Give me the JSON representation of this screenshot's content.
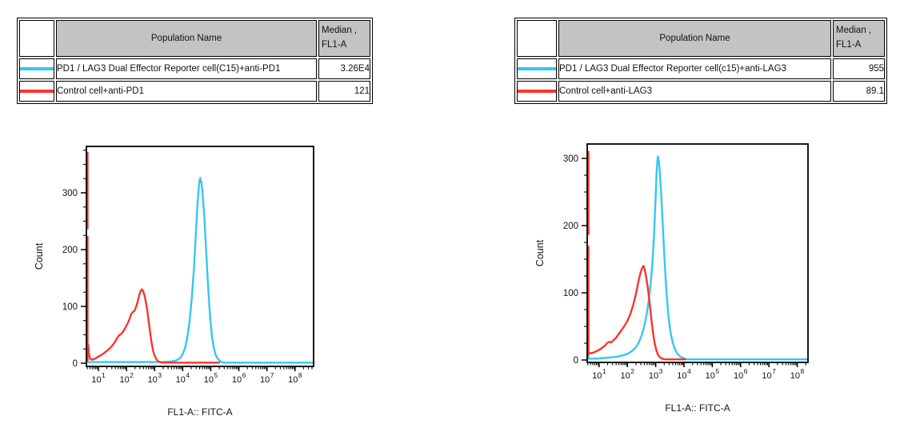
{
  "colors": {
    "series_cyan": "#35C6F4",
    "series_red": "#F8362E",
    "table_header_bg": "#C3C3C3",
    "axis": "#000000"
  },
  "panels": [
    {
      "table": {
        "population_header": "Population Name",
        "median_header_line1": "Median ,",
        "median_header_line2": "FL1-A",
        "rows": [
          {
            "swatch_color": "#35C6F4",
            "name": "PD1 / LAG3 Dual Effector Reporter cell(C15)+anti-PD1",
            "median": "3.26E4"
          },
          {
            "swatch_color": "#F8362E",
            "name": "Control cell+anti-PD1",
            "median": "121"
          }
        ]
      }
    },
    {
      "table": {
        "population_header": "Population Name",
        "median_header_line1": "Median ,",
        "median_header_line2": "FL1-A",
        "rows": [
          {
            "swatch_color": "#35C6F4",
            "name": "PD1 / LAG3 Dual Effector Reporter cell(c15)+anti-LAG3",
            "median": "955"
          },
          {
            "swatch_color": "#F8362E",
            "name": "Control cell+anti-LAG3",
            "median": "89.1"
          }
        ]
      }
    }
  ],
  "chart_data": [
    {
      "type": "line",
      "subtype": "flow-histogram",
      "xlabel": "FL1-A:: FITC-A",
      "ylabel": "Count",
      "xscale": "log10",
      "xlog_min": 0.57,
      "xlog_max": 8.66,
      "x_major_ticks_exponents": [
        1,
        2,
        3,
        4,
        5,
        6,
        7,
        8
      ],
      "y_major_ticks": [
        0,
        100,
        200,
        300
      ],
      "y_minor_step": 25,
      "y_max": 378,
      "grid": false,
      "legend": "none",
      "series": [
        {
          "name": "PD1 / LAG3 Dual Effector Reporter cell(C15)+anti-PD1",
          "color": "#35C6F4",
          "peak_x_log10": 4.62,
          "peak_count": 326,
          "edge_spike_segments": [],
          "points_logx_count": [
            [
              0.585,
              2
            ],
            [
              1.2,
              2
            ],
            [
              2.0,
              2
            ],
            [
              2.8,
              2
            ],
            [
              3.3,
              2
            ],
            [
              3.55,
              3
            ],
            [
              3.7,
              4
            ],
            [
              3.82,
              6
            ],
            [
              3.92,
              10
            ],
            [
              4.0,
              16
            ],
            [
              4.08,
              26
            ],
            [
              4.16,
              44
            ],
            [
              4.24,
              72
            ],
            [
              4.32,
              112
            ],
            [
              4.4,
              168
            ],
            [
              4.47,
              230
            ],
            [
              4.53,
              283
            ],
            [
              4.58,
              315
            ],
            [
              4.62,
              326
            ],
            [
              4.66,
              320
            ],
            [
              4.71,
              298
            ],
            [
              4.77,
              258
            ],
            [
              4.83,
              202
            ],
            [
              4.9,
              138
            ],
            [
              4.97,
              84
            ],
            [
              5.04,
              48
            ],
            [
              5.11,
              26
            ],
            [
              5.18,
              14
            ],
            [
              5.26,
              7
            ],
            [
              5.35,
              3
            ],
            [
              5.45,
              1
            ],
            [
              6.2,
              1
            ],
            [
              7.4,
              1
            ],
            [
              8.64,
              1
            ]
          ]
        },
        {
          "name": "Control cell+anti-PD1",
          "color": "#F8362E",
          "peak_x_log10": 2.55,
          "peak_count": 130,
          "edge_spike_segments": [
            [
              4,
              224
            ],
            [
              236,
              372
            ]
          ],
          "points_logx_count": [
            [
              0.585,
              4
            ],
            [
              0.61,
              30
            ],
            [
              0.635,
              32
            ],
            [
              0.66,
              16
            ],
            [
              0.7,
              8
            ],
            [
              0.78,
              6
            ],
            [
              0.88,
              8
            ],
            [
              0.98,
              11
            ],
            [
              1.08,
              14
            ],
            [
              1.18,
              17
            ],
            [
              1.28,
              21
            ],
            [
              1.38,
              25
            ],
            [
              1.48,
              30
            ],
            [
              1.58,
              37
            ],
            [
              1.66,
              44
            ],
            [
              1.73,
              49
            ],
            [
              1.8,
              51
            ],
            [
              1.87,
              55
            ],
            [
              1.94,
              61
            ],
            [
              2.02,
              68
            ],
            [
              2.1,
              77
            ],
            [
              2.16,
              86
            ],
            [
              2.22,
              90
            ],
            [
              2.28,
              92
            ],
            [
              2.34,
              99
            ],
            [
              2.4,
              109
            ],
            [
              2.46,
              121
            ],
            [
              2.51,
              128
            ],
            [
              2.55,
              130
            ],
            [
              2.59,
              127
            ],
            [
              2.64,
              119
            ],
            [
              2.69,
              107
            ],
            [
              2.74,
              92
            ],
            [
              2.79,
              73
            ],
            [
              2.84,
              54
            ],
            [
              2.89,
              37
            ],
            [
              2.94,
              23
            ],
            [
              2.99,
              14
            ],
            [
              3.05,
              8
            ],
            [
              3.11,
              4
            ],
            [
              3.18,
              2
            ],
            [
              3.3,
              1
            ],
            [
              4.2,
              1
            ],
            [
              5.3,
              1
            ]
          ]
        }
      ]
    },
    {
      "type": "line",
      "subtype": "flow-histogram",
      "xlabel": "FL1-A:: FITC-A",
      "ylabel": "Count",
      "xscale": "log10",
      "xlog_min": 0.58,
      "xlog_max": 8.38,
      "x_major_ticks_exponents": [
        1,
        2,
        3,
        4,
        5,
        6,
        7,
        8
      ],
      "y_major_ticks": [
        0,
        100,
        200,
        300
      ],
      "y_minor_step": 25,
      "y_max": 318,
      "grid": false,
      "legend": "none",
      "series": [
        {
          "name": "PD1 / LAG3 Dual Effector Reporter cell(c15)+anti-LAG3",
          "color": "#35C6F4",
          "peak_x_log10": 3.08,
          "peak_count": 303,
          "edge_spike_segments": [
            [
              1,
              68
            ]
          ],
          "points_logx_count": [
            [
              0.595,
              2
            ],
            [
              0.9,
              2
            ],
            [
              1.2,
              3
            ],
            [
              1.45,
              4
            ],
            [
              1.65,
              5
            ],
            [
              1.85,
              7
            ],
            [
              2.0,
              9
            ],
            [
              2.15,
              13
            ],
            [
              2.28,
              18
            ],
            [
              2.4,
              26
            ],
            [
              2.5,
              36
            ],
            [
              2.6,
              51
            ],
            [
              2.68,
              68
            ],
            [
              2.76,
              90
            ],
            [
              2.83,
              117
            ],
            [
              2.89,
              148
            ],
            [
              2.94,
              185
            ],
            [
              2.99,
              235
            ],
            [
              3.03,
              278
            ],
            [
              3.06,
              298
            ],
            [
              3.08,
              303
            ],
            [
              3.11,
              296
            ],
            [
              3.15,
              278
            ],
            [
              3.2,
              243
            ],
            [
              3.26,
              193
            ],
            [
              3.32,
              142
            ],
            [
              3.38,
              100
            ],
            [
              3.45,
              65
            ],
            [
              3.52,
              42
            ],
            [
              3.6,
              26
            ],
            [
              3.68,
              16
            ],
            [
              3.77,
              9
            ],
            [
              3.87,
              5
            ],
            [
              3.97,
              3
            ],
            [
              4.1,
              1
            ],
            [
              5.2,
              1
            ],
            [
              6.6,
              1
            ],
            [
              8.36,
              1
            ]
          ]
        },
        {
          "name": "Control cell+anti-LAG3",
          "color": "#F8362E",
          "peak_x_log10": 2.57,
          "peak_count": 140,
          "edge_spike_segments": [
            [
              6,
              170
            ],
            [
              186,
              311
            ]
          ],
          "points_logx_count": [
            [
              0.595,
              7
            ],
            [
              0.63,
              11
            ],
            [
              0.7,
              10
            ],
            [
              0.8,
              11
            ],
            [
              0.9,
              13
            ],
            [
              1.0,
              15
            ],
            [
              1.1,
              18
            ],
            [
              1.2,
              21
            ],
            [
              1.28,
              25
            ],
            [
              1.35,
              27
            ],
            [
              1.42,
              26
            ],
            [
              1.5,
              29
            ],
            [
              1.6,
              33
            ],
            [
              1.7,
              39
            ],
            [
              1.8,
              45
            ],
            [
              1.9,
              51
            ],
            [
              2.0,
              58
            ],
            [
              2.1,
              68
            ],
            [
              2.2,
              81
            ],
            [
              2.3,
              98
            ],
            [
              2.4,
              119
            ],
            [
              2.47,
              131
            ],
            [
              2.53,
              138
            ],
            [
              2.57,
              140
            ],
            [
              2.61,
              135
            ],
            [
              2.66,
              124
            ],
            [
              2.72,
              108
            ],
            [
              2.78,
              87
            ],
            [
              2.84,
              63
            ],
            [
              2.9,
              42
            ],
            [
              2.96,
              26
            ],
            [
              3.02,
              15
            ],
            [
              3.08,
              8
            ],
            [
              3.15,
              4
            ],
            [
              3.22,
              2
            ],
            [
              3.35,
              1
            ],
            [
              4.05,
              1
            ]
          ]
        }
      ]
    }
  ]
}
